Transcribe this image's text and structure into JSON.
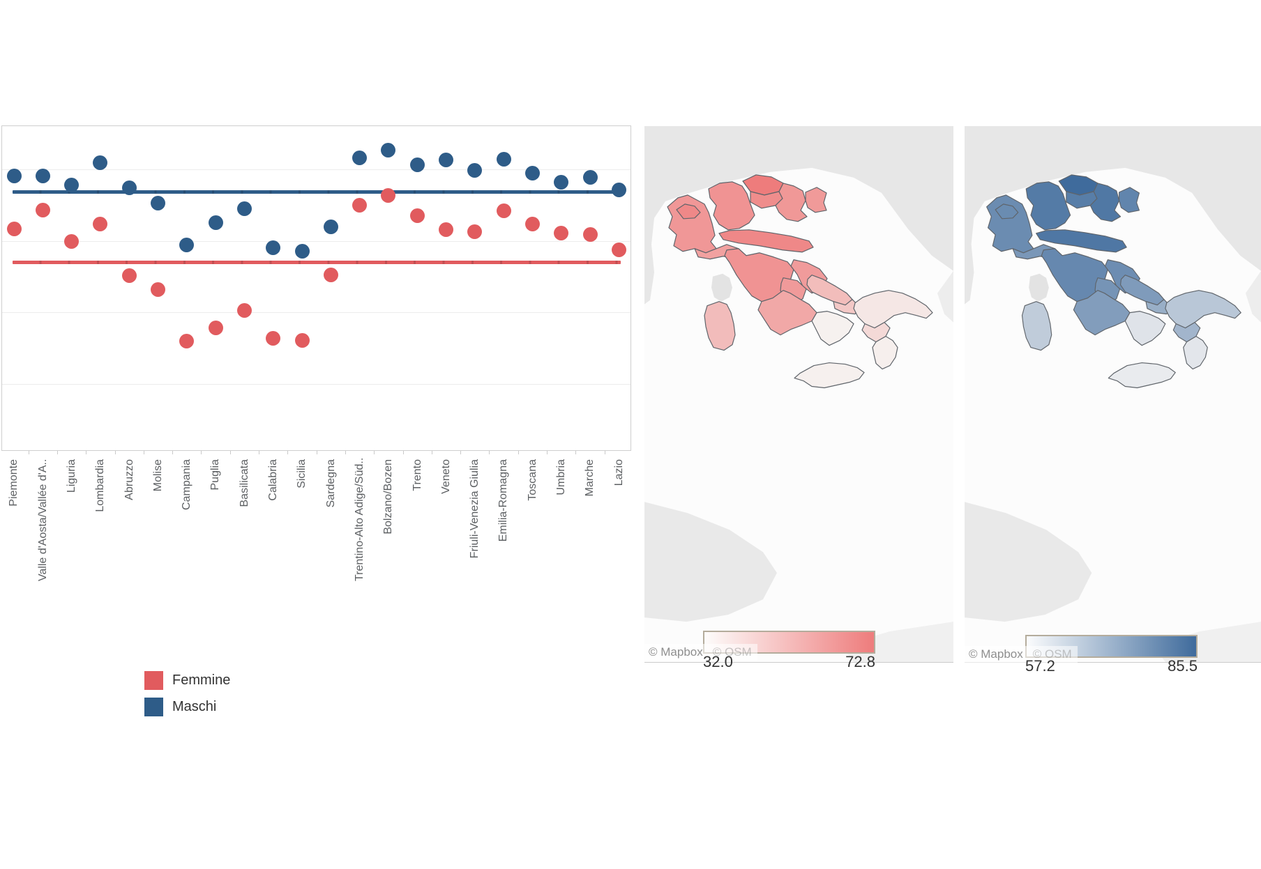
{
  "ui": {
    "legend": {
      "items": [
        {
          "label": "Femmine",
          "color": "#e15b5e"
        },
        {
          "label": "Maschi",
          "color": "#2e5c88"
        }
      ]
    },
    "maps": [
      {
        "name": "femmine",
        "scale_min_label": "32.0",
        "scale_max_label": "72.8",
        "attribution_mapbox": "© Mapbox",
        "attribution_osm": "© OSM",
        "gradient_low": "#f6f1ef",
        "gradient_high": "#ee7c7c"
      },
      {
        "name": "maschi",
        "scale_min_label": "57.2",
        "scale_max_label": "85.5",
        "attribution_mapbox": "© Mapbox",
        "attribution_osm": "© OSM",
        "gradient_low": "#e9ebee",
        "gradient_high": "#3f6b9c"
      }
    ]
  },
  "chart_data": [
    {
      "type": "scatter",
      "title": "",
      "xlabel": "",
      "ylabel": "",
      "categories": [
        "Piemonte",
        "Valle d'Aosta/Vallée d'A..",
        "Liguria",
        "Lombardia",
        "Abruzzo",
        "Molise",
        "Campania",
        "Puglia",
        "Basilicata",
        "Calabria",
        "Sicilia",
        "Sardegna",
        "Trentino-Alto Adige/Süd..",
        "Bolzano/Bozen",
        "Trento",
        "Veneto",
        "Friuli-Venezia Giulia",
        "Emilia-Romagna",
        "Toscana",
        "Umbria",
        "Marche",
        "Lazio"
      ],
      "series": [
        {
          "name": "Femmine",
          "color": "#e15b5e",
          "values": [
            63.3,
            68.7,
            59.9,
            64.8,
            50.3,
            46.4,
            32.0,
            35.6,
            40.5,
            32.7,
            32.2,
            50.5,
            70.0,
            72.8,
            67.0,
            63.2,
            62.5,
            68.5,
            64.8,
            62.2,
            61.9,
            57.6
          ]
        },
        {
          "name": "Maschi",
          "color": "#2e5c88",
          "values": [
            78.2,
            78.3,
            75.7,
            82.0,
            74.9,
            70.5,
            58.9,
            65.2,
            69.1,
            58.2,
            57.2,
            64.0,
            83.3,
            85.5,
            81.3,
            82.6,
            79.8,
            82.9,
            79.0,
            76.4,
            77.9,
            74.4
          ]
        }
      ],
      "average_reference_lines": {
        "Femmine": 54.1,
        "Maschi": 73.8
      },
      "ylim": [
        0,
        92
      ],
      "y_gridlines": [
        20,
        40,
        60,
        80
      ],
      "grid": true,
      "legend_position": "bottom-left"
    },
    {
      "type": "heatmap",
      "subtype": "choropleth-italy",
      "name": "Femmine",
      "scale": {
        "min": 32.0,
        "max": 72.8
      },
      "regions": {
        "piemonte": 63.3,
        "valledaosta": 68.7,
        "liguria": 59.9,
        "lombardia": 64.8,
        "bolzano": 72.8,
        "trento": 67.0,
        "veneto": 63.2,
        "friuli": 62.5,
        "emilia": 68.5,
        "toscana": 64.8,
        "umbria": 62.2,
        "marche": 61.9,
        "lazio": 57.6,
        "abruzzo": 50.3,
        "molise": 46.4,
        "campania": 32.0,
        "puglia": 35.6,
        "basilicata": 40.5,
        "calabria": 32.7,
        "sicilia": 32.2,
        "sardegna": 50.5
      }
    },
    {
      "type": "heatmap",
      "subtype": "choropleth-italy",
      "name": "Maschi",
      "scale": {
        "min": 57.2,
        "max": 85.5
      },
      "regions": {
        "piemonte": 78.2,
        "valledaosta": 78.3,
        "liguria": 75.7,
        "lombardia": 82.0,
        "bolzano": 85.5,
        "trento": 81.3,
        "veneto": 82.6,
        "friuli": 79.8,
        "emilia": 82.9,
        "toscana": 79.0,
        "umbria": 76.4,
        "marche": 77.9,
        "lazio": 74.4,
        "abruzzo": 74.9,
        "molise": 70.5,
        "campania": 58.9,
        "puglia": 65.2,
        "basilicata": 69.1,
        "calabria": 58.2,
        "sicilia": 57.2,
        "sardegna": 64.0
      }
    }
  ]
}
